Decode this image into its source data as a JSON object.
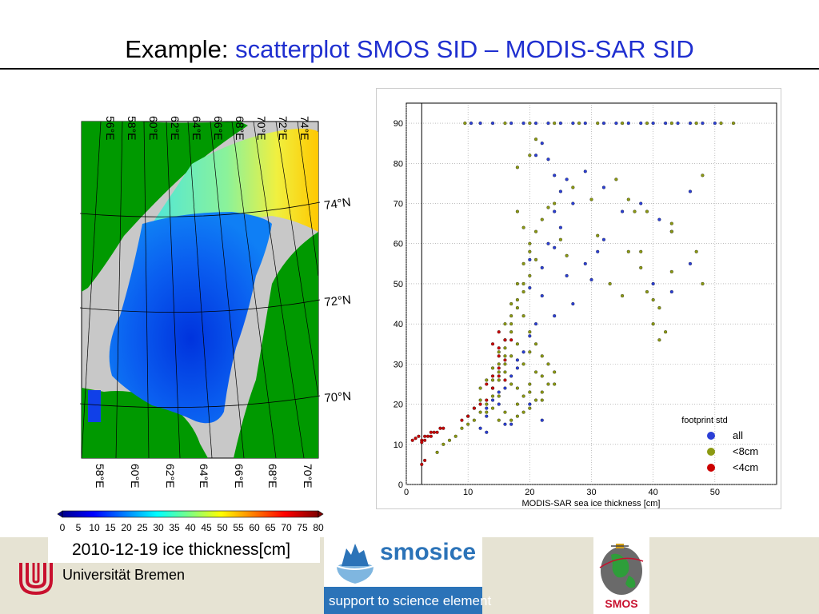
{
  "slide": {
    "title_prefix": "Example:",
    "title_highlight": "scatterplot SMOS SID – MODIS-SAR SID"
  },
  "colors": {
    "accent": "#1f2fd0",
    "band": "#e6e3d3",
    "land": "#009900",
    "nodata": "#c8c8c8",
    "series_all": "#2b3fd6",
    "series_8cm": "#8c9a12",
    "series_4cm": "#cc0000"
  },
  "map": {
    "caption": "2010-12-19 ice thickness[cm]",
    "top_longitudes": [
      "56°E",
      "58°E",
      "60°E",
      "62°E",
      "64°E",
      "66°E",
      "68°E",
      "70°E",
      "72°E",
      "74°E"
    ],
    "bottom_longitudes": [
      "58°E",
      "60°E",
      "62°E",
      "64°E",
      "66°E",
      "68°E",
      "70°E"
    ],
    "latitudes": [
      "74°N",
      "72°N",
      "70°N"
    ],
    "colorbar_ticks": [
      "0",
      "5",
      "10",
      "15",
      "20",
      "25",
      "30",
      "35",
      "40",
      "45",
      "50",
      "55",
      "60",
      "65",
      "70",
      "75",
      "80"
    ]
  },
  "chart_data": {
    "type": "scatter",
    "title": "",
    "xlabel": "MODIS-SAR sea ice thickness [cm]",
    "ylabel": "",
    "xlim": [
      0,
      60
    ],
    "ylim": [
      0,
      95
    ],
    "xticks": [
      "0",
      "10",
      "20",
      "30",
      "40",
      "50"
    ],
    "yticks": [
      "0",
      "10",
      "20",
      "30",
      "40",
      "50",
      "60",
      "70",
      "80",
      "90"
    ],
    "grid": true,
    "vertical_reference_line_x": 2.5,
    "legend_title": "footprint std",
    "legend_position": "lower-right",
    "series": [
      {
        "name": "all",
        "color_key": "series_all",
        "points": [
          [
            10.5,
            90
          ],
          [
            12,
            90
          ],
          [
            14,
            90
          ],
          [
            17,
            90
          ],
          [
            19,
            90
          ],
          [
            21,
            90
          ],
          [
            23,
            90
          ],
          [
            25,
            90
          ],
          [
            27,
            90
          ],
          [
            29,
            90
          ],
          [
            32,
            90
          ],
          [
            34,
            90
          ],
          [
            36,
            90
          ],
          [
            38,
            90
          ],
          [
            40,
            90
          ],
          [
            42,
            90
          ],
          [
            44,
            90
          ],
          [
            46,
            90
          ],
          [
            48,
            90
          ],
          [
            50,
            90
          ],
          [
            22,
            85
          ],
          [
            21,
            82
          ],
          [
            23,
            81
          ],
          [
            24,
            77
          ],
          [
            26,
            76
          ],
          [
            29,
            78
          ],
          [
            32,
            74
          ],
          [
            38,
            70
          ],
          [
            46,
            73
          ],
          [
            35,
            68
          ],
          [
            41,
            66
          ],
          [
            43,
            63
          ],
          [
            25,
            64
          ],
          [
            24,
            59
          ],
          [
            20,
            56
          ],
          [
            22,
            54
          ],
          [
            26,
            52
          ],
          [
            29,
            55
          ],
          [
            30,
            51
          ],
          [
            40,
            50
          ],
          [
            43,
            48
          ],
          [
            46,
            55
          ],
          [
            27,
            45
          ],
          [
            24,
            42
          ],
          [
            21,
            40
          ],
          [
            20,
            37
          ],
          [
            19,
            33
          ],
          [
            18,
            31
          ],
          [
            18,
            29
          ],
          [
            17,
            27
          ],
          [
            16,
            24
          ],
          [
            15,
            23
          ],
          [
            14,
            21
          ],
          [
            13,
            19
          ],
          [
            13,
            17
          ],
          [
            16,
            15
          ],
          [
            17,
            15
          ],
          [
            12,
            14
          ],
          [
            13,
            13
          ],
          [
            15,
            20
          ],
          [
            20,
            20
          ],
          [
            22,
            16
          ],
          [
            25,
            73
          ],
          [
            27,
            70
          ],
          [
            24,
            68
          ],
          [
            23,
            60
          ],
          [
            32,
            61
          ],
          [
            31,
            58
          ],
          [
            22,
            47
          ],
          [
            20,
            49
          ]
        ]
      },
      {
        "name": "<8cm",
        "color_key": "series_8cm",
        "points": [
          [
            9.5,
            90
          ],
          [
            16,
            90
          ],
          [
            20,
            90
          ],
          [
            24,
            90
          ],
          [
            28,
            90
          ],
          [
            31,
            90
          ],
          [
            35,
            90
          ],
          [
            39,
            90
          ],
          [
            43,
            90
          ],
          [
            47,
            90
          ],
          [
            51,
            90
          ],
          [
            53,
            90
          ],
          [
            21,
            86
          ],
          [
            20,
            82
          ],
          [
            18,
            79
          ],
          [
            27,
            74
          ],
          [
            30,
            71
          ],
          [
            34,
            76
          ],
          [
            39,
            68
          ],
          [
            48,
            77
          ],
          [
            36,
            71
          ],
          [
            37,
            68
          ],
          [
            43,
            63
          ],
          [
            47,
            58
          ],
          [
            43,
            65
          ],
          [
            38,
            58
          ],
          [
            36,
            58
          ],
          [
            31,
            62
          ],
          [
            33,
            50
          ],
          [
            38,
            54
          ],
          [
            39,
            48
          ],
          [
            40,
            46
          ],
          [
            41,
            44
          ],
          [
            40,
            40
          ],
          [
            42,
            38
          ],
          [
            41,
            36
          ],
          [
            43,
            53
          ],
          [
            48,
            50
          ],
          [
            35,
            47
          ],
          [
            18,
            68
          ],
          [
            19,
            64
          ],
          [
            20,
            60
          ],
          [
            20,
            58
          ],
          [
            21,
            56
          ],
          [
            20,
            52
          ],
          [
            19,
            50
          ],
          [
            19,
            48
          ],
          [
            18,
            46
          ],
          [
            18,
            44
          ],
          [
            17,
            42
          ],
          [
            17,
            40
          ],
          [
            17,
            38
          ],
          [
            16,
            36
          ],
          [
            16,
            34
          ],
          [
            16,
            32
          ],
          [
            15,
            30
          ],
          [
            15,
            28
          ],
          [
            15,
            26
          ],
          [
            14,
            24
          ],
          [
            14,
            22
          ],
          [
            13,
            20
          ],
          [
            12,
            18
          ],
          [
            11,
            16
          ],
          [
            10,
            15
          ],
          [
            9,
            14
          ],
          [
            8,
            12
          ],
          [
            7,
            11
          ],
          [
            6,
            10
          ],
          [
            5,
            8
          ],
          [
            19,
            42
          ],
          [
            20,
            38
          ],
          [
            21,
            35
          ],
          [
            22,
            32
          ],
          [
            23,
            30
          ],
          [
            24,
            28
          ],
          [
            23,
            25
          ],
          [
            22,
            23
          ],
          [
            21,
            21
          ],
          [
            20,
            19
          ],
          [
            19,
            18
          ],
          [
            18,
            17
          ],
          [
            17,
            16
          ],
          [
            18,
            20
          ],
          [
            19,
            22
          ],
          [
            20,
            25
          ],
          [
            21,
            28
          ],
          [
            22,
            27
          ],
          [
            19,
            30
          ],
          [
            20,
            33
          ],
          [
            18,
            35
          ],
          [
            17,
            32
          ],
          [
            16,
            28
          ],
          [
            17,
            25
          ],
          [
            15,
            22
          ],
          [
            14,
            19
          ],
          [
            13,
            18
          ],
          [
            16,
            18
          ],
          [
            15,
            16
          ],
          [
            12,
            21
          ],
          [
            11,
            19
          ],
          [
            10,
            17
          ],
          [
            14,
            26
          ],
          [
            15,
            33
          ],
          [
            16,
            40
          ],
          [
            17,
            45
          ],
          [
            18,
            50
          ],
          [
            19,
            55
          ],
          [
            21,
            63
          ],
          [
            22,
            66
          ],
          [
            23,
            69
          ],
          [
            24,
            70
          ],
          [
            25,
            61
          ],
          [
            26,
            57
          ],
          [
            12,
            24
          ],
          [
            13,
            26
          ],
          [
            14,
            29
          ],
          [
            16,
            30
          ],
          [
            18,
            24
          ],
          [
            20,
            23
          ],
          [
            22,
            21
          ],
          [
            24,
            25
          ]
        ]
      },
      {
        "name": "<4cm",
        "color_key": "series_4cm",
        "points": [
          [
            1,
            11
          ],
          [
            1.5,
            11.5
          ],
          [
            2,
            12
          ],
          [
            2.5,
            11
          ],
          [
            3,
            12
          ],
          [
            3.5,
            12
          ],
          [
            4,
            13
          ],
          [
            4.5,
            13
          ],
          [
            5,
            13
          ],
          [
            5.5,
            14
          ],
          [
            6,
            14
          ],
          [
            2.5,
            10.5
          ],
          [
            3,
            11
          ],
          [
            4,
            12
          ],
          [
            2.5,
            5
          ],
          [
            3,
            6
          ],
          [
            14,
            35
          ],
          [
            15,
            38
          ],
          [
            15,
            34
          ],
          [
            15,
            32
          ],
          [
            16,
            36
          ],
          [
            16,
            31
          ],
          [
            17,
            36
          ],
          [
            13,
            25
          ],
          [
            14,
            27
          ],
          [
            15,
            29
          ],
          [
            15,
            27
          ],
          [
            16,
            26
          ],
          [
            14,
            24
          ],
          [
            13,
            21
          ],
          [
            12,
            20
          ],
          [
            11,
            19
          ],
          [
            10,
            17
          ],
          [
            9,
            16
          ]
        ]
      }
    ]
  },
  "logos": {
    "university": "Universität Bremen",
    "smosice_name": "smosice",
    "smosice_tagline": "support to science element",
    "smos_text": "SMOS"
  }
}
